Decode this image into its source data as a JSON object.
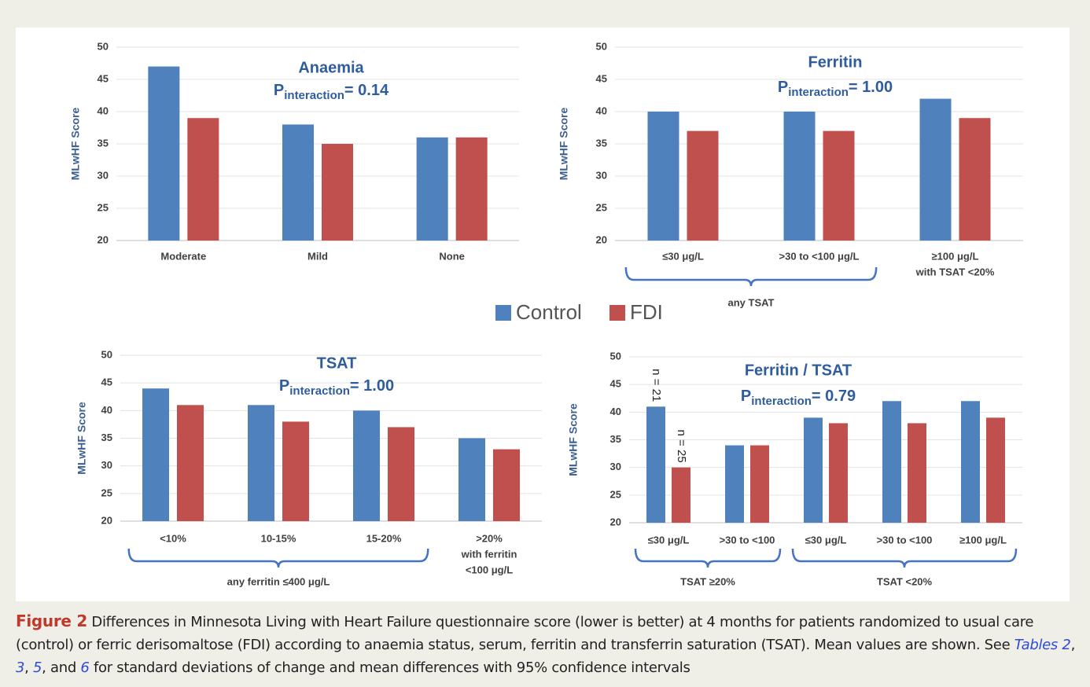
{
  "chart_data": [
    {
      "type": "bar",
      "title": "Anaemia",
      "annotation": {
        "text": "P",
        "subscript": "interaction",
        "value": "= 0.14"
      },
      "y_label": "MLwHF Score",
      "categories": [
        "Moderate",
        "Mild",
        "None"
      ],
      "series": [
        {
          "values": [
            47,
            38,
            36
          ]
        },
        {
          "values": [
            39,
            35,
            36
          ]
        }
      ],
      "ylim": [
        20,
        50
      ],
      "yticks": [
        20,
        25,
        30,
        35,
        40,
        45,
        50
      ],
      "grid": true
    },
    {
      "type": "bar",
      "title": "Ferritin",
      "annotation": {
        "text": "P",
        "subscript": "interaction",
        "value": "= 1.00"
      },
      "y_label": "MLwHF Score",
      "categories": [
        "≤30 μg/L",
        ">30 to <100 μg/L",
        [
          "≥100 μg/L",
          "with TSAT <20%"
        ]
      ],
      "series": [
        {
          "values": [
            40,
            40,
            42
          ]
        },
        {
          "values": [
            37,
            37,
            39
          ]
        }
      ],
      "groups": [
        "any TSAT"
      ],
      "ylim": [
        20,
        50
      ],
      "yticks": [
        20,
        25,
        30,
        35,
        40,
        45,
        50
      ],
      "grid": true
    },
    {
      "type": "bar",
      "title": "TSAT",
      "annotation": {
        "text": "P",
        "subscript": "interaction",
        "value": "= 1.00"
      },
      "y_label": "MLwHF Score",
      "categories": [
        "<10%",
        "10-15%",
        "15-20%",
        [
          ">20%",
          "with ferritin",
          "<100 μg/L"
        ]
      ],
      "series": [
        {
          "values": [
            44,
            41,
            40,
            35
          ]
        },
        {
          "values": [
            41,
            38,
            37,
            33
          ]
        }
      ],
      "groups": [
        "any ferritin ≤400 μg/L"
      ],
      "ylim": [
        20,
        50
      ],
      "yticks": [
        20,
        25,
        30,
        35,
        40,
        45,
        50
      ],
      "grid": true
    },
    {
      "type": "bar",
      "title": "Ferritin / TSAT",
      "annotation": {
        "text": "P",
        "subscript": "interaction",
        "value": "= 0.79"
      },
      "y_label": "MLwHF Score",
      "categories": [
        "≤30 μg/L",
        ">30 to <100",
        "≤30 μg/L",
        ">30 to <100",
        "≥100 μg/L"
      ],
      "series": [
        {
          "values": [
            41,
            34,
            39,
            42,
            42
          ]
        },
        {
          "values": [
            30,
            34,
            38,
            38,
            39
          ]
        }
      ],
      "groups": [
        "TSAT ≥20%",
        "TSAT <20%"
      ],
      "notes": [
        "n = 21",
        "n = 25"
      ],
      "ylim": [
        20,
        50
      ],
      "yticks": [
        20,
        25,
        30,
        35,
        40,
        45,
        50
      ],
      "grid": true
    }
  ],
  "legend": [
    {
      "name": "Control",
      "color": "#4f81bd"
    },
    {
      "name": "FDI",
      "color": "#c0504d"
    }
  ],
  "caption": {
    "label": "Figure 2",
    "parts": [
      {
        "text": " Differences in Minnesota Living with Heart Failure questionnaire score (lower is better) at 4 months for patients randomized to usual care (control) or ferric derisomaltose (FDI) according to anaemia status, serum, ferritin and transferrin saturation (TSAT). Mean values are shown. See "
      },
      {
        "text": "Tables 2",
        "link": true
      },
      {
        "text": ", "
      },
      {
        "text": "3",
        "link": true
      },
      {
        "text": ", "
      },
      {
        "text": "5",
        "link": true
      },
      {
        "text": ", and "
      },
      {
        "text": "6",
        "link": true
      },
      {
        "text": " for standard deviations of change and mean differences with 95% confidence intervals"
      }
    ]
  }
}
